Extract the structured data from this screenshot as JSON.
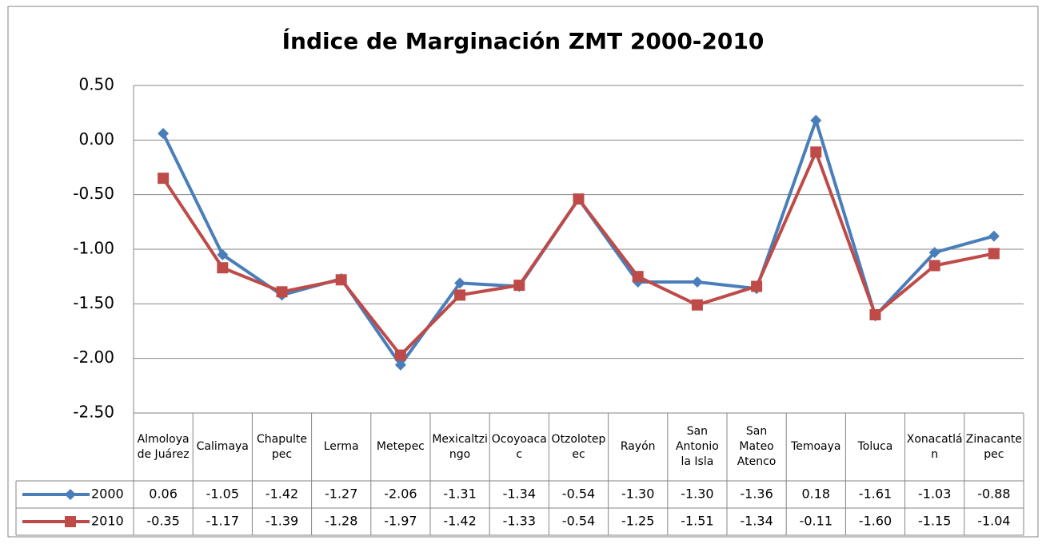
{
  "chart_data": {
    "type": "line",
    "title": "Índice de Marginación ZMT 2000-2010",
    "categories": [
      "Almoloya de Juárez",
      "Calimaya",
      "Chapultepec",
      "Lerma",
      "Metepec",
      "Mexicaltzingo",
      "Ocoyoacac",
      "Otzolotepec",
      "Rayón",
      "San Antonio la Isla",
      "San Mateo Atenco",
      "Temoaya",
      "Toluca",
      "Xonacatlán",
      "Zinacantepec"
    ],
    "series": [
      {
        "name": "2000",
        "color": "#4a7ebb",
        "marker": "diamond",
        "values": [
          0.06,
          -1.05,
          -1.42,
          -1.27,
          -2.06,
          -1.31,
          -1.34,
          -0.54,
          -1.3,
          -1.3,
          -1.36,
          0.18,
          -1.61,
          -1.03,
          -0.88
        ],
        "value_labels": [
          "0.06",
          "-1.05",
          "-1.42",
          "-1.27",
          "-2.06",
          "-1.31",
          "-1.34",
          "-0.54",
          "-1.30",
          "-1.30",
          "-1.36",
          "0.18",
          "-1.61",
          "-1.03",
          "-0.88"
        ]
      },
      {
        "name": "2010",
        "color": "#be4b48",
        "marker": "square",
        "values": [
          -0.35,
          -1.17,
          -1.39,
          -1.28,
          -1.97,
          -1.42,
          -1.33,
          -0.54,
          -1.25,
          -1.51,
          -1.34,
          -0.11,
          -1.6,
          -1.15,
          -1.04
        ],
        "value_labels": [
          "-0.35",
          "-1.17",
          "-1.39",
          "-1.28",
          "-1.97",
          "-1.42",
          "-1.33",
          "-0.54",
          "-1.25",
          "-1.51",
          "-1.34",
          "-0.11",
          "-1.60",
          "-1.15",
          "-1.04"
        ]
      }
    ],
    "ylim": [
      -2.5,
      0.5
    ],
    "yticks": [
      {
        "value": -2.5,
        "label": "-2.50"
      },
      {
        "value": -2,
        "label": "-2.00"
      },
      {
        "value": -1.5,
        "label": "-1.50"
      },
      {
        "value": -1,
        "label": "-1.00"
      },
      {
        "value": -0.5,
        "label": "-0.50"
      },
      {
        "value": 0,
        "label": "0.00"
      },
      {
        "value": 0.5,
        "label": "0.50"
      }
    ],
    "grid": true
  }
}
